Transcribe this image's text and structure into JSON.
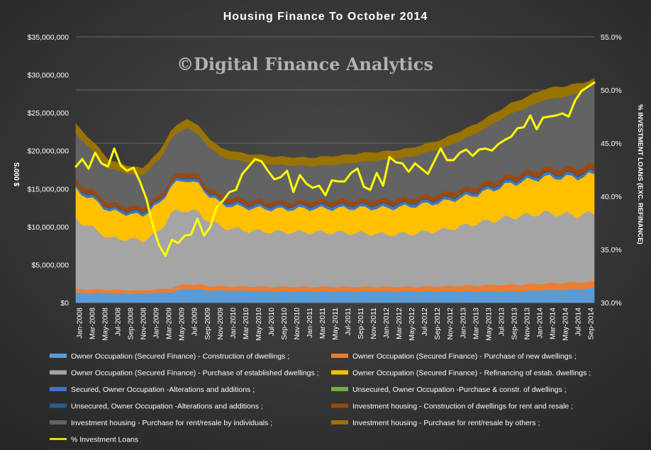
{
  "chart_data": {
    "type": "area",
    "title": "Housing Finance To October 2014",
    "watermark": "©Digital Finance Analytics",
    "ylabel": "$ 000'S",
    "y2label": "% INVESTMENT LOANS (EXC. REFINANCE)",
    "ylim": [
      0,
      35000000
    ],
    "y2lim": [
      30,
      55
    ],
    "yticks": [
      "$0",
      "$5,000,000",
      "$10,000,000",
      "$15,000,000",
      "$20,000,000",
      "$25,000,000",
      "$30,000,000",
      "$35,000,000"
    ],
    "y2ticks": [
      "30.0%",
      "35.0%",
      "40.0%",
      "45.0%",
      "50.0%",
      "55.0%"
    ],
    "grid": true,
    "legend_position": "bottom",
    "x_labels": [
      "Jan-2008",
      "Mar-2008",
      "May-2008",
      "Jul-2008",
      "Sep-2008",
      "Nov-2008",
      "Jan-2009",
      "Mar-2009",
      "May-2009",
      "Jul-2009",
      "Sep-2009",
      "Nov-2009",
      "Jan-2010",
      "Mar-2010",
      "May-2010",
      "Jul-2010",
      "Sep-2010",
      "Nov-2010",
      "Jan-2011",
      "Mar-2011",
      "May-2011",
      "Jul-2011",
      "Sep-2011",
      "Nov-2011",
      "Jan-2012",
      "Mar-2012",
      "May-2012",
      "Jul-2012",
      "Sep-2012",
      "Nov-2012",
      "Jan-2013",
      "Mar-2013",
      "May-2013",
      "Jul-2013",
      "Sep-2013",
      "Nov-2013",
      "Jan-2014",
      "Mar-2014",
      "May-2014",
      "Jul-2014",
      "Sep-2014"
    ],
    "x_start": "Jan-2008",
    "x_end": "Oct-2014",
    "series": [
      {
        "name": "Owner Occupation (Secured Finance) - Construction of dwellings ;",
        "color": "#5b9bd5",
        "knots": [
          [
            0,
            1.3
          ],
          [
            12,
            1.2
          ],
          [
            17,
            1.4
          ],
          [
            20,
            1.9
          ],
          [
            24,
            1.6
          ],
          [
            36,
            1.5
          ],
          [
            60,
            1.5
          ],
          [
            80,
            1.5
          ],
          [
            93,
            1.9
          ]
        ]
      },
      {
        "name": "Owner Occupation (Secured Finance) - Purchase of new dwellings ;",
        "color": "#ed7d31",
        "knots": [
          [
            0,
            0.5
          ],
          [
            12,
            0.4
          ],
          [
            20,
            0.6
          ],
          [
            36,
            0.6
          ],
          [
            60,
            0.6
          ],
          [
            80,
            0.9
          ],
          [
            93,
            0.9
          ]
        ]
      },
      {
        "name": "Owner Occupation (Secured Finance) - Purchase of established dwellings ;",
        "color": "#a5a5a5",
        "knots": [
          [
            0,
            9.2
          ],
          [
            4,
            7.7
          ],
          [
            6,
            6.8
          ],
          [
            10,
            6.7
          ],
          [
            12,
            6.6
          ],
          [
            15,
            7.6
          ],
          [
            17,
            9.8
          ],
          [
            20,
            9.8
          ],
          [
            22,
            9.4
          ],
          [
            26,
            7.8
          ],
          [
            30,
            7.4
          ],
          [
            36,
            7.2
          ],
          [
            42,
            7.2
          ],
          [
            50,
            7.1
          ],
          [
            56,
            6.9
          ],
          [
            60,
            7.0
          ],
          [
            66,
            7.4
          ],
          [
            72,
            8.2
          ],
          [
            78,
            8.9
          ],
          [
            84,
            9.3
          ],
          [
            90,
            8.8
          ],
          [
            93,
            9.0
          ]
        ]
      },
      {
        "name": "Owner Occupation (Secured Finance) - Refinancing of estab. dwellings ;",
        "color": "#ffc000",
        "knots": [
          [
            0,
            3.9
          ],
          [
            6,
            3.6
          ],
          [
            10,
            3.3
          ],
          [
            12,
            3.3
          ],
          [
            14,
            3.6
          ],
          [
            17,
            3.6
          ],
          [
            20,
            4.0
          ],
          [
            22,
            3.7
          ],
          [
            26,
            3.0
          ],
          [
            30,
            3.0
          ],
          [
            36,
            3.0
          ],
          [
            48,
            3.2
          ],
          [
            60,
            3.6
          ],
          [
            66,
            3.7
          ],
          [
            72,
            3.8
          ],
          [
            78,
            4.4
          ],
          [
            84,
            4.7
          ],
          [
            90,
            5.0
          ],
          [
            93,
            5.1
          ]
        ]
      },
      {
        "name": "Secured, Owner Occupation -Alterations and additions ;",
        "color": "#4472c4",
        "knots": [
          [
            0,
            0.3
          ],
          [
            93,
            0.35
          ]
        ]
      },
      {
        "name": "Unsecured, Owner Occupation -Purchase & constr. of dwellings ;",
        "color": "#70ad47",
        "knots": [
          [
            0,
            0.02
          ],
          [
            93,
            0.02
          ]
        ]
      },
      {
        "name": "Unsecured, Owner Occupation -Alterations and additions ;",
        "color": "#255e91",
        "knots": [
          [
            0,
            0.15
          ],
          [
            93,
            0.15
          ]
        ]
      },
      {
        "name": "Investment housing - Construction of dwellings for rent and resale ;",
        "color": "#9e480e",
        "knots": [
          [
            0,
            0.7
          ],
          [
            12,
            0.5
          ],
          [
            20,
            0.6
          ],
          [
            36,
            0.5
          ],
          [
            60,
            0.6
          ],
          [
            80,
            0.6
          ],
          [
            93,
            0.8
          ]
        ]
      },
      {
        "name": "Investment housing - Purchase for rent/resale by individuals ;",
        "color": "#636363",
        "knots": [
          [
            0,
            6.2
          ],
          [
            6,
            4.5
          ],
          [
            10,
            4.3
          ],
          [
            12,
            4.3
          ],
          [
            17,
            5.2
          ],
          [
            20,
            5.8
          ],
          [
            24,
            5.3
          ],
          [
            30,
            5.0
          ],
          [
            36,
            4.9
          ],
          [
            42,
            4.6
          ],
          [
            48,
            4.8
          ],
          [
            54,
            5.2
          ],
          [
            60,
            5.4
          ],
          [
            66,
            6.0
          ],
          [
            72,
            7.0
          ],
          [
            78,
            8.1
          ],
          [
            84,
            9.0
          ],
          [
            90,
            9.7
          ],
          [
            93,
            10.7
          ]
        ]
      },
      {
        "name": "Investment housing - Purchase for rent/resale by others ;",
        "color": "#997300",
        "knots": [
          [
            0,
            1.2
          ],
          [
            12,
            0.9
          ],
          [
            20,
            1.1
          ],
          [
            36,
            1.0
          ],
          [
            48,
            1.1
          ],
          [
            60,
            1.1
          ],
          [
            72,
            1.2
          ],
          [
            84,
            1.4
          ],
          [
            90,
            1.3
          ],
          [
            93,
            0.5
          ]
        ]
      }
    ],
    "pct_series": {
      "name": "% Investment Loans",
      "color": "#ffff00",
      "knots": [
        [
          0,
          42.8
        ],
        [
          1,
          43.5
        ],
        [
          2,
          42.6
        ],
        [
          3,
          44.1
        ],
        [
          4,
          43.1
        ],
        [
          5,
          42.8
        ],
        [
          6,
          44.5
        ],
        [
          7,
          42.9
        ],
        [
          8,
          42.4
        ],
        [
          9,
          42.7
        ],
        [
          10,
          41.4
        ],
        [
          11,
          39.8
        ],
        [
          12,
          37.3
        ],
        [
          13,
          35.4
        ],
        [
          14,
          34.4
        ],
        [
          15,
          35.9
        ],
        [
          16,
          35.6
        ],
        [
          17,
          36.3
        ],
        [
          18,
          36.4
        ],
        [
          19,
          37.9
        ],
        [
          20,
          36.3
        ],
        [
          21,
          37.1
        ],
        [
          22,
          39.0
        ],
        [
          23,
          39.6
        ],
        [
          24,
          40.4
        ],
        [
          25,
          40.6
        ],
        [
          26,
          42.1
        ],
        [
          27,
          42.8
        ],
        [
          28,
          43.5
        ],
        [
          29,
          43.3
        ],
        [
          30,
          42.4
        ],
        [
          31,
          41.6
        ],
        [
          32,
          41.8
        ],
        [
          33,
          42.4
        ],
        [
          34,
          40.4
        ],
        [
          35,
          42.0
        ],
        [
          36,
          41.2
        ],
        [
          37,
          40.8
        ],
        [
          38,
          41.0
        ],
        [
          39,
          40.1
        ],
        [
          40,
          41.5
        ],
        [
          41,
          41.4
        ],
        [
          42,
          41.4
        ],
        [
          43,
          42.2
        ],
        [
          44,
          42.6
        ],
        [
          45,
          40.9
        ],
        [
          46,
          40.6
        ],
        [
          47,
          42.2
        ],
        [
          48,
          41.0
        ],
        [
          49,
          43.7
        ],
        [
          50,
          43.2
        ],
        [
          51,
          43.1
        ],
        [
          52,
          42.3
        ],
        [
          53,
          43.1
        ],
        [
          54,
          42.6
        ],
        [
          55,
          42.1
        ],
        [
          56,
          43.3
        ],
        [
          57,
          44.5
        ],
        [
          58,
          43.4
        ],
        [
          59,
          43.4
        ],
        [
          60,
          44.1
        ],
        [
          61,
          44.4
        ],
        [
          62,
          43.8
        ],
        [
          63,
          44.4
        ],
        [
          64,
          44.5
        ],
        [
          65,
          44.3
        ],
        [
          66,
          44.9
        ],
        [
          67,
          45.3
        ],
        [
          68,
          45.6
        ],
        [
          69,
          46.4
        ],
        [
          70,
          46.5
        ],
        [
          71,
          47.6
        ],
        [
          72,
          46.3
        ],
        [
          73,
          47.4
        ],
        [
          74,
          47.5
        ],
        [
          75,
          47.6
        ],
        [
          76,
          47.8
        ],
        [
          77,
          47.5
        ],
        [
          78,
          49.0
        ],
        [
          79,
          49.9
        ],
        [
          80,
          50.3
        ],
        [
          81,
          50.7
        ]
      ]
    }
  },
  "legend": {
    "items": [
      {
        "label": "Owner Occupation (Secured Finance) - Construction of dwellings ;",
        "color": "#5b9bd5",
        "kind": "swatch"
      },
      {
        "label": "Owner Occupation (Secured Finance) - Purchase of new dwellings ;",
        "color": "#ed7d31",
        "kind": "swatch"
      },
      {
        "label": "Owner Occupation (Secured Finance) - Purchase of established dwellings ;",
        "color": "#a5a5a5",
        "kind": "swatch"
      },
      {
        "label": "Owner Occupation (Secured Finance) - Refinancing of estab. dwellings ;",
        "color": "#ffc000",
        "kind": "swatch"
      },
      {
        "label": "Secured, Owner Occupation -Alterations and additions ;",
        "color": "#4472c4",
        "kind": "swatch"
      },
      {
        "label": "Unsecured, Owner Occupation -Purchase & constr. of dwellings ;",
        "color": "#70ad47",
        "kind": "swatch"
      },
      {
        "label": "Unsecured, Owner Occupation -Alterations and additions ;",
        "color": "#255e91",
        "kind": "swatch"
      },
      {
        "label": "Investment housing - Construction of dwellings for rent and resale ;",
        "color": "#9e480e",
        "kind": "swatch"
      },
      {
        "label": "Investment housing - Purchase for rent/resale by individuals ;",
        "color": "#636363",
        "kind": "swatch"
      },
      {
        "label": "Investment housing - Purchase for rent/resale by others ;",
        "color": "#997300",
        "kind": "swatch"
      },
      {
        "label": "% Investment Loans",
        "color": "#ffff00",
        "kind": "line"
      }
    ]
  }
}
